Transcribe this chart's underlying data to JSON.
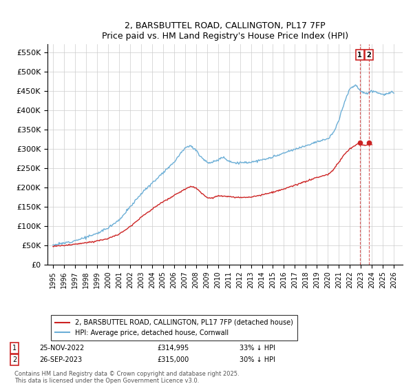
{
  "title": "2, BARSBUTTEL ROAD, CALLINGTON, PL17 7FP",
  "subtitle": "Price paid vs. HM Land Registry's House Price Index (HPI)",
  "hpi_color": "#6baed6",
  "price_color": "#cc2222",
  "dashed_line_color": "#cc2222",
  "background_color": "#ffffff",
  "grid_color": "#cccccc",
  "ylim": [
    0,
    570000
  ],
  "yticks": [
    0,
    50000,
    100000,
    150000,
    200000,
    250000,
    300000,
    350000,
    400000,
    450000,
    500000,
    550000
  ],
  "ytick_labels": [
    "£0",
    "£50K",
    "£100K",
    "£150K",
    "£200K",
    "£250K",
    "£300K",
    "£350K",
    "£400K",
    "£450K",
    "£500K",
    "£550K"
  ],
  "xtick_labels": [
    "1995",
    "1996",
    "1997",
    "1998",
    "1999",
    "2000",
    "2001",
    "2002",
    "2003",
    "2004",
    "2005",
    "2006",
    "2007",
    "2008",
    "2009",
    "2010",
    "2011",
    "2012",
    "2013",
    "2014",
    "2015",
    "2016",
    "2017",
    "2018",
    "2019",
    "2020",
    "2021",
    "2022",
    "2023",
    "2024",
    "2025",
    "2026"
  ],
  "sale1_date_label": "25-NOV-2022",
  "sale1_price_label": "£314,995",
  "sale1_pct_label": "33% ↓ HPI",
  "sale1_x": 2022.9,
  "sale1_price": 314995,
  "sale2_date_label": "26-SEP-2023",
  "sale2_price_label": "£315,000",
  "sale2_pct_label": "30% ↓ HPI",
  "sale2_x": 2023.73,
  "sale2_price": 315000,
  "legend_line1": "2, BARSBUTTEL ROAD, CALLINGTON, PL17 7FP (detached house)",
  "legend_line2": "HPI: Average price, detached house, Cornwall",
  "footnote": "Contains HM Land Registry data © Crown copyright and database right 2025.\nThis data is licensed under the Open Government Licence v3.0."
}
